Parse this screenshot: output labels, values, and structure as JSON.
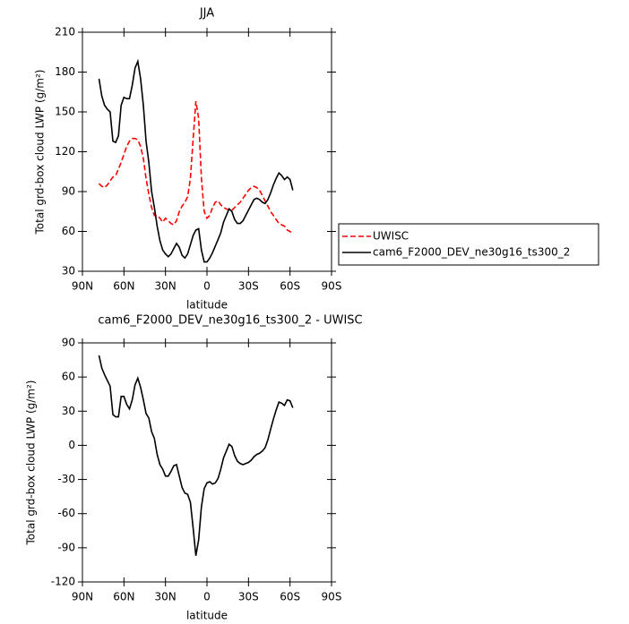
{
  "chart_data": [
    {
      "type": "line",
      "title": "JJA",
      "xlabel": "latitude",
      "ylabel": "Total grd-box cloud LWP (g/m²)",
      "x": [
        78,
        76,
        74,
        72,
        70,
        68,
        66,
        64,
        62,
        60,
        58,
        56,
        54,
        52,
        50,
        48,
        46,
        44,
        42,
        40,
        38,
        36,
        34,
        32,
        30,
        28,
        26,
        24,
        22,
        20,
        18,
        16,
        14,
        12,
        10,
        8,
        6,
        4,
        2,
        0,
        -2,
        -4,
        -6,
        -8,
        -10,
        -12,
        -14,
        -16,
        -18,
        -20,
        -22,
        -24,
        -26,
        -28,
        -30,
        -32,
        -34,
        -36,
        -38,
        -40,
        -42,
        -44,
        -46,
        -48,
        -50,
        -52,
        -54,
        -56,
        -58,
        -60,
        -62
      ],
      "series": [
        {
          "name": "UWISC",
          "color": "#ff0000",
          "dash": true,
          "values": [
            96,
            94,
            93,
            95,
            98,
            101,
            102,
            107,
            112,
            118,
            124,
            128,
            130,
            130,
            129,
            124,
            115,
            100,
            88,
            78,
            72,
            72,
            70,
            67,
            70,
            68,
            66,
            65,
            68,
            75,
            79,
            82,
            86,
            100,
            130,
            158,
            145,
            100,
            75,
            70,
            72,
            78,
            82,
            83,
            80,
            78,
            77,
            76,
            76,
            78,
            80,
            82,
            85,
            88,
            91,
            93,
            94,
            93,
            91,
            87,
            83,
            79,
            75,
            72,
            69,
            66,
            65,
            64,
            61,
            60,
            58
          ]
        },
        {
          "name": "cam6_F2000_DEV_ne30g16_ts300_2",
          "color": "#000000",
          "dash": false,
          "values": [
            175,
            162,
            155,
            152,
            150,
            128,
            127,
            132,
            155,
            161,
            160,
            160,
            170,
            183,
            188,
            175,
            155,
            128,
            112,
            90,
            78,
            64,
            53,
            46,
            43,
            41,
            43,
            47,
            51,
            48,
            42,
            40,
            43,
            50,
            57,
            61,
            62,
            46,
            37,
            37,
            40,
            44,
            49,
            54,
            59,
            67,
            72,
            77,
            75,
            69,
            66,
            66,
            68,
            72,
            76,
            80,
            84,
            85,
            84,
            82,
            81,
            84,
            89,
            95,
            100,
            104,
            102,
            99,
            101,
            99,
            91
          ]
        }
      ],
      "xlim": [
        90,
        -90
      ],
      "xticks": [
        {
          "value": 90,
          "label": "90N"
        },
        {
          "value": 60,
          "label": "60N"
        },
        {
          "value": 30,
          "label": "30N"
        },
        0,
        {
          "value": -30,
          "label": "30S"
        },
        {
          "value": -60,
          "label": "60S"
        },
        {
          "value": -90,
          "label": "90S"
        }
      ],
      "ylim": [
        30,
        210
      ],
      "yticks": [
        30,
        60,
        90,
        120,
        150,
        180,
        210
      ],
      "legend": "right"
    },
    {
      "type": "line",
      "title": "cam6_F2000_DEV_ne30g16_ts300_2 - UWISC",
      "xlabel": "latitude",
      "ylabel": "Total grd-box cloud LWP (g/m²)",
      "x": [
        78,
        76,
        74,
        72,
        70,
        68,
        66,
        64,
        62,
        60,
        58,
        56,
        54,
        52,
        50,
        48,
        46,
        44,
        42,
        40,
        38,
        36,
        34,
        32,
        30,
        28,
        26,
        24,
        22,
        20,
        18,
        16,
        14,
        12,
        10,
        8,
        6,
        4,
        2,
        0,
        -2,
        -4,
        -6,
        -8,
        -10,
        -12,
        -14,
        -16,
        -18,
        -20,
        -22,
        -24,
        -26,
        -28,
        -30,
        -32,
        -34,
        -36,
        -38,
        -40,
        -42,
        -44,
        -46,
        -48,
        -50,
        -52,
        -54,
        -56,
        -58,
        -60,
        -62
      ],
      "series": [
        {
          "color": "#000000",
          "dash": false,
          "values": [
            79,
            68,
            62,
            57,
            52,
            27,
            25,
            25,
            43,
            43,
            36,
            32,
            40,
            53,
            59,
            51,
            40,
            28,
            24,
            12,
            6,
            -8,
            -17,
            -21,
            -27,
            -27,
            -23,
            -18,
            -17,
            -27,
            -37,
            -42,
            -43,
            -50,
            -73,
            -97,
            -83,
            -54,
            -38,
            -33,
            -32,
            -34,
            -33,
            -29,
            -21,
            -11,
            -5,
            1,
            -1,
            -9,
            -14,
            -16,
            -17,
            -16,
            -15,
            -13,
            -10,
            -8,
            -7,
            -5,
            -2,
            5,
            14,
            23,
            31,
            38,
            37,
            35,
            40,
            39,
            33
          ]
        }
      ],
      "xlim": [
        90,
        -90
      ],
      "xticks": [
        {
          "value": 90,
          "label": "90N"
        },
        {
          "value": 60,
          "label": "60N"
        },
        {
          "value": 30,
          "label": "30N"
        },
        0,
        {
          "value": -30,
          "label": "30S"
        },
        {
          "value": -60,
          "label": "60S"
        },
        {
          "value": -90,
          "label": "90S"
        }
      ],
      "ylim": [
        -120,
        90
      ],
      "yticks": [
        -120,
        -90,
        -60,
        -30,
        0,
        30,
        60,
        90
      ]
    }
  ]
}
